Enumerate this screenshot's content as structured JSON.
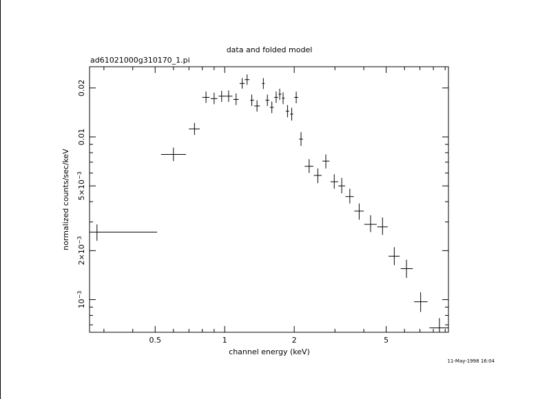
{
  "chart_data": {
    "type": "scatter",
    "title": "data and folded model",
    "subtitle": "ad61021000g310170_1.pi",
    "xlabel": "channel energy (keV)",
    "ylabel": "normalized counts/sec/keV",
    "xscale": "log",
    "yscale": "log",
    "xlim": [
      0.26,
      9.3
    ],
    "ylim": [
      0.00063,
      0.027
    ],
    "grid": false,
    "x_ticks": [
      {
        "value": 0.5,
        "label": "0.5"
      },
      {
        "value": 1,
        "label": "1"
      },
      {
        "value": 2,
        "label": "2"
      },
      {
        "value": 5,
        "label": "5"
      }
    ],
    "y_ticks": [
      {
        "value": 0.001,
        "label": "10",
        "exp": "−3"
      },
      {
        "value": 0.002,
        "label": "2×10",
        "exp": "−3"
      },
      {
        "value": 0.005,
        "label": "5×10",
        "exp": "−3"
      },
      {
        "value": 0.01,
        "label": "0.01",
        "exp": ""
      },
      {
        "value": 0.02,
        "label": "0.02",
        "exp": ""
      }
    ],
    "series": [
      {
        "points": [
          {
            "x": 0.28,
            "xlo": 0.26,
            "xhi": 0.51,
            "y": 0.0026,
            "ylo": 0.0023,
            "yhi": 0.0029
          },
          {
            "x": 0.6,
            "xlo": 0.53,
            "xhi": 0.68,
            "y": 0.0078,
            "ylo": 0.0071,
            "yhi": 0.0086
          },
          {
            "x": 0.74,
            "xlo": 0.7,
            "xhi": 0.78,
            "y": 0.0112,
            "ylo": 0.0103,
            "yhi": 0.0122
          },
          {
            "x": 0.83,
            "xlo": 0.8,
            "xhi": 0.86,
            "y": 0.0175,
            "ylo": 0.0162,
            "yhi": 0.019
          },
          {
            "x": 0.9,
            "xlo": 0.87,
            "xhi": 0.93,
            "y": 0.0172,
            "ylo": 0.0159,
            "yhi": 0.0187
          },
          {
            "x": 0.97,
            "xlo": 0.94,
            "xhi": 1.01,
            "y": 0.0178,
            "ylo": 0.0164,
            "yhi": 0.0192
          },
          {
            "x": 1.04,
            "xlo": 1.01,
            "xhi": 1.08,
            "y": 0.0178,
            "ylo": 0.0164,
            "yhi": 0.0193
          },
          {
            "x": 1.12,
            "xlo": 1.09,
            "xhi": 1.15,
            "y": 0.017,
            "ylo": 0.0157,
            "yhi": 0.0185
          },
          {
            "x": 1.19,
            "xlo": 1.16,
            "xhi": 1.22,
            "y": 0.0213,
            "ylo": 0.0198,
            "yhi": 0.023
          },
          {
            "x": 1.25,
            "xlo": 1.22,
            "xhi": 1.28,
            "y": 0.0225,
            "ylo": 0.0209,
            "yhi": 0.0242
          },
          {
            "x": 1.31,
            "xlo": 1.29,
            "xhi": 1.34,
            "y": 0.0168,
            "ylo": 0.0155,
            "yhi": 0.0182
          },
          {
            "x": 1.38,
            "xlo": 1.34,
            "xhi": 1.42,
            "y": 0.0155,
            "ylo": 0.0143,
            "yhi": 0.0168
          },
          {
            "x": 1.47,
            "xlo": 1.45,
            "xhi": 1.49,
            "y": 0.0213,
            "ylo": 0.0197,
            "yhi": 0.023
          },
          {
            "x": 1.53,
            "xlo": 1.5,
            "xhi": 1.56,
            "y": 0.0168,
            "ylo": 0.0155,
            "yhi": 0.0182
          },
          {
            "x": 1.6,
            "xlo": 1.57,
            "xhi": 1.63,
            "y": 0.0152,
            "ylo": 0.014,
            "yhi": 0.0165
          },
          {
            "x": 1.67,
            "xlo": 1.64,
            "xhi": 1.7,
            "y": 0.0175,
            "ylo": 0.0162,
            "yhi": 0.019
          },
          {
            "x": 1.73,
            "xlo": 1.71,
            "xhi": 1.76,
            "y": 0.0183,
            "ylo": 0.0169,
            "yhi": 0.0198
          },
          {
            "x": 1.79,
            "xlo": 1.77,
            "xhi": 1.82,
            "y": 0.0173,
            "ylo": 0.0159,
            "yhi": 0.0188
          },
          {
            "x": 1.87,
            "xlo": 1.84,
            "xhi": 1.9,
            "y": 0.0144,
            "ylo": 0.0132,
            "yhi": 0.0157
          },
          {
            "x": 1.95,
            "xlo": 1.92,
            "xhi": 1.98,
            "y": 0.0138,
            "ylo": 0.0126,
            "yhi": 0.0151
          },
          {
            "x": 2.04,
            "xlo": 2.0,
            "xhi": 2.08,
            "y": 0.0175,
            "ylo": 0.0161,
            "yhi": 0.019
          },
          {
            "x": 2.14,
            "xlo": 2.1,
            "xhi": 2.18,
            "y": 0.0097,
            "ylo": 0.0088,
            "yhi": 0.0107
          },
          {
            "x": 2.32,
            "xlo": 2.22,
            "xhi": 2.42,
            "y": 0.0066,
            "ylo": 0.006,
            "yhi": 0.0073
          },
          {
            "x": 2.53,
            "xlo": 2.43,
            "xhi": 2.63,
            "y": 0.0058,
            "ylo": 0.0052,
            "yhi": 0.0064
          },
          {
            "x": 2.74,
            "xlo": 2.65,
            "xhi": 2.84,
            "y": 0.0071,
            "ylo": 0.0064,
            "yhi": 0.0078
          },
          {
            "x": 2.98,
            "xlo": 2.87,
            "xhi": 3.1,
            "y": 0.0053,
            "ylo": 0.0048,
            "yhi": 0.0059
          },
          {
            "x": 3.21,
            "xlo": 3.1,
            "xhi": 3.32,
            "y": 0.005,
            "ylo": 0.0045,
            "yhi": 0.0056
          },
          {
            "x": 3.48,
            "xlo": 3.33,
            "xhi": 3.62,
            "y": 0.0043,
            "ylo": 0.0039,
            "yhi": 0.0048
          },
          {
            "x": 3.82,
            "xlo": 3.64,
            "xhi": 4.0,
            "y": 0.0035,
            "ylo": 0.0031,
            "yhi": 0.0039
          },
          {
            "x": 4.28,
            "xlo": 4.02,
            "xhi": 4.55,
            "y": 0.0029,
            "ylo": 0.0026,
            "yhi": 0.0033
          },
          {
            "x": 4.82,
            "xlo": 4.58,
            "xhi": 5.08,
            "y": 0.0028,
            "ylo": 0.0025,
            "yhi": 0.0032
          },
          {
            "x": 5.42,
            "xlo": 5.12,
            "xhi": 5.72,
            "y": 0.00185,
            "ylo": 0.00163,
            "yhi": 0.0021
          },
          {
            "x": 6.12,
            "xlo": 5.78,
            "xhi": 6.52,
            "y": 0.00155,
            "ylo": 0.00136,
            "yhi": 0.00176
          },
          {
            "x": 7.05,
            "xlo": 6.6,
            "xhi": 7.55,
            "y": 0.00097,
            "ylo": 0.00084,
            "yhi": 0.00111
          },
          {
            "x": 8.5,
            "xlo": 7.7,
            "xhi": 9.3,
            "y": 0.00067,
            "ylo": 0.00059,
            "yhi": 0.00077
          }
        ]
      }
    ]
  },
  "footer": {
    "timestamp": "11-May-1998 16:04"
  }
}
